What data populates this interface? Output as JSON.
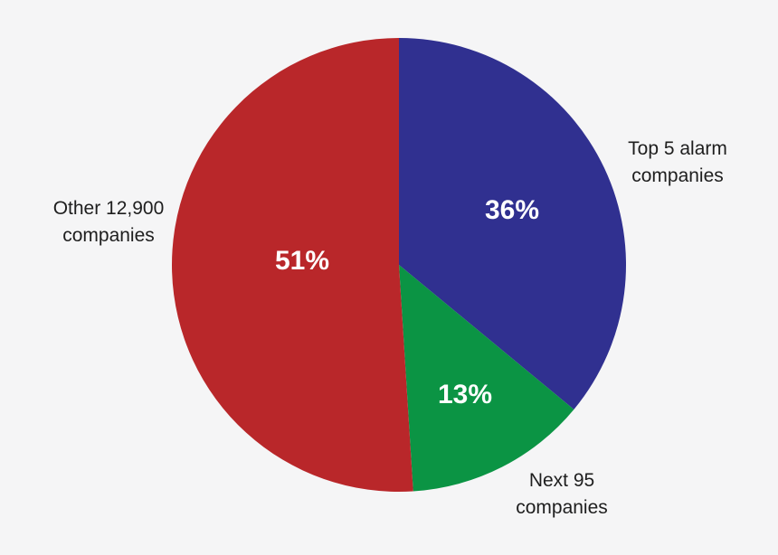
{
  "chart_data": {
    "type": "pie",
    "title": "",
    "start_angle_deg": 0,
    "direction": "clockwise",
    "slices": [
      {
        "label": [
          "Top 5 alarm",
          "companies"
        ],
        "value": 36,
        "value_label": "36%",
        "color": "#303090"
      },
      {
        "label": [
          "Next 95",
          "companies"
        ],
        "value": 13,
        "value_label": "13%",
        "color": "#0b9444"
      },
      {
        "label": [
          "Other 12,900",
          "companies"
        ],
        "value": 51,
        "value_label": "51%",
        "color": "#b9272a"
      }
    ]
  }
}
